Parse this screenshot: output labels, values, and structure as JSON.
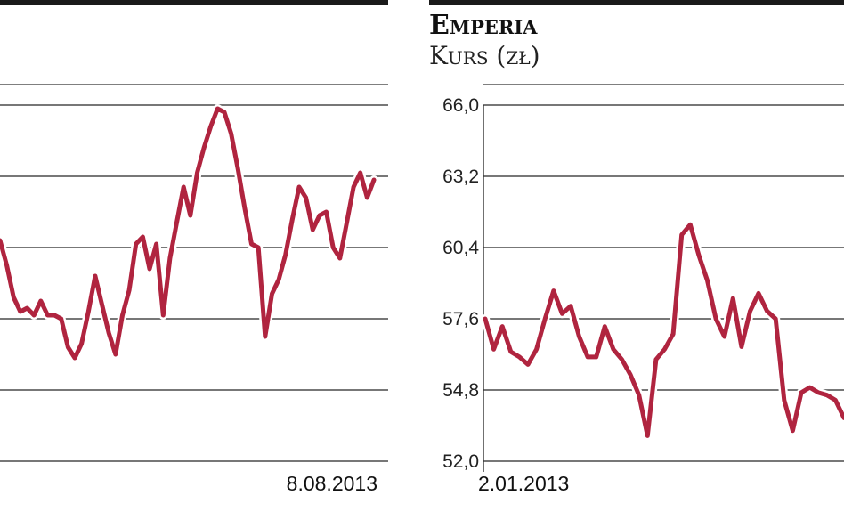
{
  "chart_data": [
    {
      "type": "line",
      "title": "",
      "ylabel": "",
      "end_date_label": "8.08.2013",
      "ylim": [
        0,
        5
      ],
      "grid": true,
      "color": "#b0243f",
      "values": [
        3.1,
        2.75,
        2.3,
        2.1,
        2.15,
        2.05,
        2.25,
        2.05,
        2.05,
        2.0,
        1.6,
        1.45,
        1.65,
        2.1,
        2.6,
        2.2,
        1.8,
        1.5,
        2.05,
        2.4,
        3.05,
        3.15,
        2.7,
        3.05,
        2.05,
        2.85,
        3.35,
        3.85,
        3.45,
        4.05,
        4.4,
        4.7,
        4.95,
        4.9,
        4.6,
        4.1,
        3.55,
        3.05,
        3.0,
        1.75,
        2.35,
        2.55,
        2.9,
        3.4,
        3.85,
        3.7,
        3.25,
        3.45,
        3.5,
        3.0,
        2.85,
        3.35,
        3.85,
        4.05,
        3.7,
        3.95
      ]
    },
    {
      "type": "line",
      "title": "Emperia",
      "ylabel": "Kurs (zł)",
      "start_date_label": "2.01.2013",
      "yticks": [
        "66,0",
        "63,2",
        "60,4",
        "57,6",
        "54,8",
        "52,0"
      ],
      "ylim": [
        52.0,
        66.0
      ],
      "grid": true,
      "color": "#b0243f",
      "values": [
        57.6,
        56.4,
        57.3,
        56.3,
        56.1,
        55.8,
        56.4,
        57.6,
        58.7,
        57.8,
        58.1,
        56.9,
        56.1,
        56.1,
        57.3,
        56.4,
        56.0,
        55.4,
        54.6,
        53.0,
        56.0,
        56.4,
        57.0,
        60.9,
        61.3,
        60.1,
        59.1,
        57.6,
        56.9,
        58.4,
        56.5,
        57.9,
        58.6,
        57.9,
        57.6,
        54.4,
        53.2,
        54.7,
        54.9,
        54.7,
        54.6,
        54.4,
        53.7
      ]
    }
  ]
}
